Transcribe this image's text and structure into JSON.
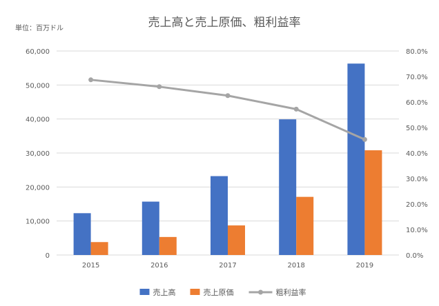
{
  "chart_data": {
    "type": "bar",
    "title": "売上高と売上原価、粗利益率",
    "unit_label": "単位：百万ドル",
    "categories": [
      "2015",
      "2016",
      "2017",
      "2018",
      "2019"
    ],
    "series": [
      {
        "name": "売上高",
        "kind": "bar",
        "axis": "left",
        "color": "#4472C4",
        "values": [
          12300,
          15700,
          23200,
          39900,
          56300
        ]
      },
      {
        "name": "売上原価",
        "kind": "bar",
        "axis": "left",
        "color": "#ED7D31",
        "values": [
          3800,
          5300,
          8700,
          17100,
          30800
        ]
      },
      {
        "name": "粗利益率",
        "kind": "line",
        "axis": "right",
        "color": "#A5A5A5",
        "values": [
          68.7,
          66.0,
          62.5,
          57.2,
          45.3
        ]
      }
    ],
    "left_axis": {
      "min": 0,
      "max": 60000,
      "ticks": [
        0,
        10000,
        20000,
        30000,
        40000,
        50000,
        60000
      ],
      "tick_labels": [
        "0",
        "10,000",
        "20,000",
        "30,000",
        "40,000",
        "50,000",
        "60,000"
      ]
    },
    "right_axis": {
      "min": 0,
      "max": 80,
      "ticks": [
        0,
        10,
        20,
        30,
        40,
        50,
        60,
        70,
        80
      ],
      "tick_labels": [
        "0.0%",
        "10.0%",
        "20.0%",
        "30.0%",
        "40.0%",
        "50.0%",
        "60.0%",
        "70.0%",
        "80.0%"
      ]
    },
    "gridlines": true,
    "legend_position": "bottom-center",
    "xlabel": "",
    "ylabel": ""
  },
  "colors": {
    "grid": "#D9D9D9",
    "axis_text": "#595959",
    "title_text": "#595959"
  }
}
